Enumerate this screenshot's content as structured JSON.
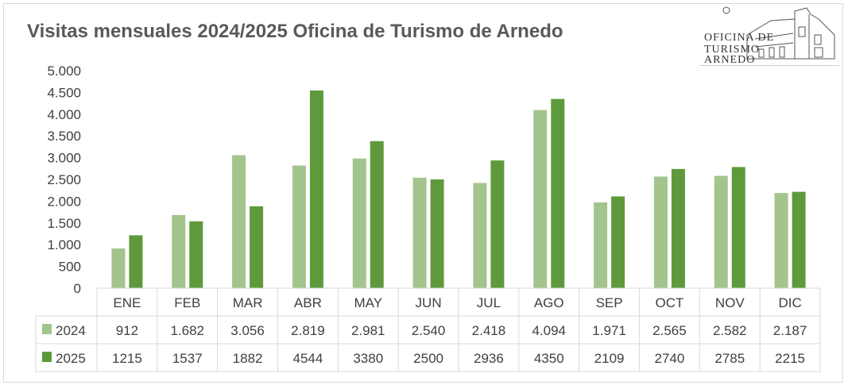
{
  "chart_data": {
    "type": "bar",
    "title": "Visitas mensuales 2024/2025 Oficina de Turismo de Arnedo",
    "categories": [
      "ENE",
      "FEB",
      "MAR",
      "ABR",
      "MAY",
      "JUN",
      "JUL",
      "AGO",
      "SEP",
      "OCT",
      "NOV",
      "DIC"
    ],
    "series": [
      {
        "name": "2024",
        "color": "#a3c48c",
        "values": [
          912,
          1682,
          3056,
          2819,
          2981,
          2540,
          2418,
          4094,
          1971,
          2565,
          2582,
          2187
        ],
        "table_labels": [
          "912",
          "1.682",
          "3.056",
          "2.819",
          "2.981",
          "2.540",
          "2.418",
          "4.094",
          "1.971",
          "2.565",
          "2.582",
          "2.187"
        ]
      },
      {
        "name": "2025",
        "color": "#5e9a3c",
        "values": [
          1215,
          1537,
          1882,
          4544,
          3380,
          2500,
          2936,
          4350,
          2109,
          2740,
          2785,
          2215
        ],
        "table_labels": [
          "1215",
          "1537",
          "1882",
          "4544",
          "3380",
          "2500",
          "2936",
          "4350",
          "2109",
          "2740",
          "2785",
          "2215"
        ]
      }
    ],
    "ylim": [
      0,
      5000
    ],
    "yticks": [
      0,
      500,
      1000,
      1500,
      2000,
      2500,
      3000,
      3500,
      4000,
      4500,
      5000
    ],
    "ytick_labels": [
      "0",
      "500",
      "1.000",
      "1.500",
      "2.000",
      "2.500",
      "3.000",
      "3.500",
      "4.000",
      "4.500",
      "5.000"
    ],
    "xlabel": "",
    "ylabel": "",
    "grid": false,
    "legend": "data-table-left"
  },
  "logo": {
    "lines": [
      "OFICINA DE",
      "TURISMO",
      "ARNEDO"
    ]
  }
}
